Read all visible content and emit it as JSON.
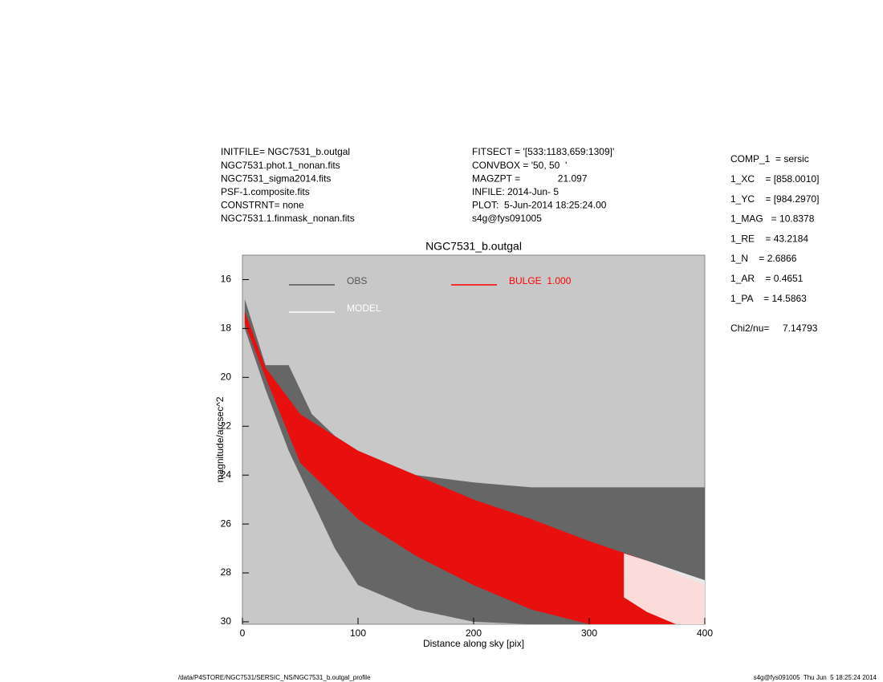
{
  "header": {
    "left": [
      "INITFILE= NGC7531_b.outgal",
      "NGC7531.phot.1_nonan.fits",
      "NGC7531_sigma2014.fits",
      "PSF-1.composite.fits",
      "CONSTRNT= none",
      "NGC7531.1.finmask_nonan.fits"
    ],
    "middle": [
      "FITSECT = '[533:1183,659:1309]'",
      "CONVBOX = '50, 50  '",
      "MAGZPT =              21.097",
      "INFILE: 2014-Jun- 5",
      "PLOT:  5-Jun-2014 18:25:24.00",
      "s4g@fys091005"
    ],
    "params": [
      "COMP_1  = sersic",
      "1_XC    = [858.0010]",
      "1_YC    = [984.2970]",
      "1_MAG   = 10.8378",
      "1_RE    = 43.2184",
      "1_N    = 2.6866",
      "1_AR    = 0.4651",
      "1_PA    = 14.5863"
    ],
    "chi2": "Chi2/nu=     7.14793"
  },
  "footer": {
    "left": "/data/P4STORE/NGC7531/SERSIC_NS/NGC7531_b.outgal_profile",
    "right": "s4g@fys091005  Thu Jun  5 18:25:24 2014"
  },
  "chart_data": {
    "type": "band",
    "title": "NGC7531_b.outgal",
    "xlabel": "Distance along sky [pix]",
    "ylabel": "magnitude/arcsec^2",
    "xlim": [
      0,
      400
    ],
    "ylim": [
      15,
      30.1
    ],
    "y_inverted": true,
    "xticks": [
      0,
      100,
      200,
      300,
      400
    ],
    "yticks": [
      16,
      18,
      20,
      22,
      24,
      26,
      28,
      30
    ],
    "background": "#c8c8c8",
    "series": [
      {
        "name": "OBS",
        "color": "#555555",
        "x": [
          2,
          20,
          40,
          60,
          80,
          100,
          150,
          200,
          250,
          300,
          350,
          400
        ],
        "y_low": [
          16.8,
          19.5,
          19.5,
          21.5,
          22.4,
          23.0,
          24.0,
          24.3,
          24.5,
          24.5,
          24.5,
          24.5
        ],
        "y_high": [
          18.0,
          20.5,
          23.0,
          25.0,
          27.0,
          28.5,
          29.5,
          30.0,
          30.1,
          30.1,
          30.1,
          30.1
        ]
      },
      {
        "name": "BULGE  1.000",
        "color": "#ff0000",
        "x": [
          2,
          20,
          50,
          100,
          150,
          200,
          250,
          300,
          350,
          400
        ],
        "y_low": [
          17.3,
          19.6,
          21.5,
          23.0,
          24.0,
          25.0,
          25.8,
          26.7,
          27.5,
          28.5
        ],
        "y_high": [
          17.8,
          20.0,
          23.5,
          25.8,
          27.3,
          28.5,
          29.5,
          30.1,
          30.1,
          30.1
        ]
      },
      {
        "name": "MODEL",
        "color": "#ffffff",
        "x": [
          330,
          350,
          375,
          400
        ],
        "y_low": [
          27.2,
          27.5,
          27.9,
          28.3
        ],
        "y_high": [
          29.0,
          29.6,
          30.1,
          30.1
        ]
      }
    ]
  }
}
